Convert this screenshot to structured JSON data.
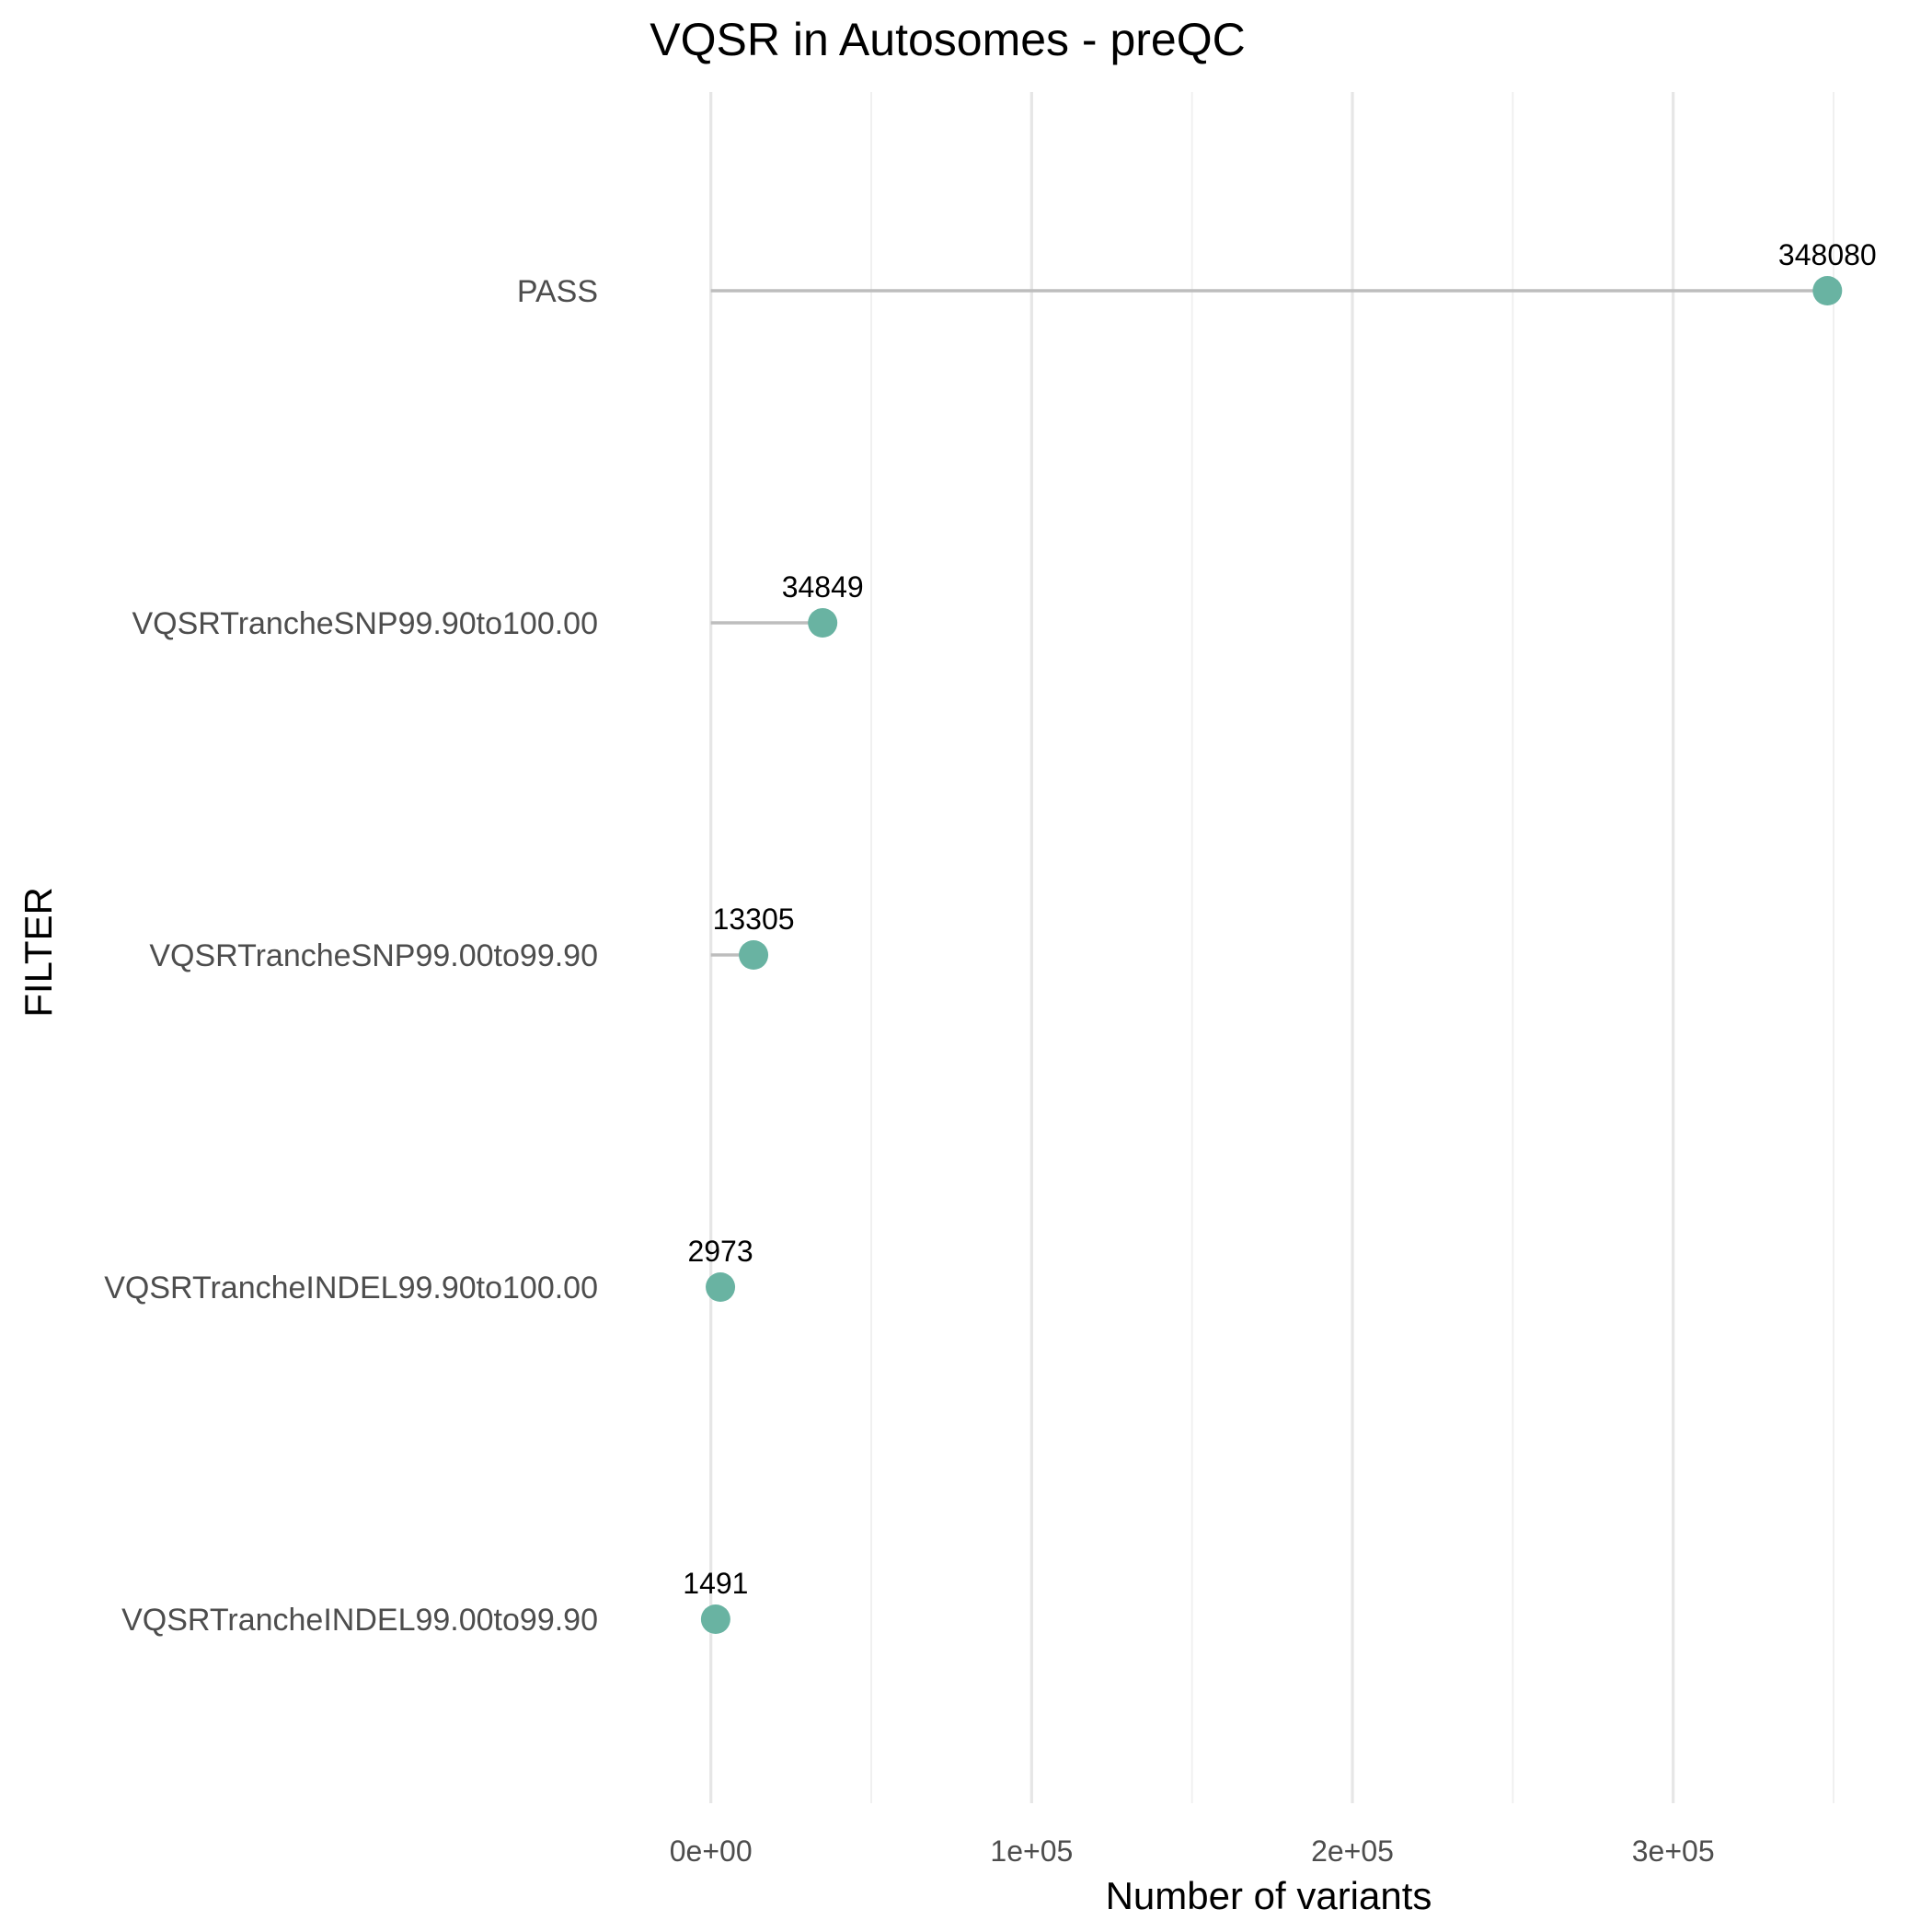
{
  "chart_data": {
    "type": "scatter",
    "title": "VQSR in Autosomes - preQC",
    "xlabel": "Number of variants",
    "ylabel": "FILTER",
    "categories": [
      "PASS",
      "VQSRTrancheSNP99.90to100.00",
      "VQSRTrancheSNP99.00to99.90",
      "VQSRTrancheINDEL99.90to100.00",
      "VQSRTrancheINDEL99.00to99.90"
    ],
    "values": [
      348080,
      34849,
      13305,
      2973,
      1491
    ],
    "data_labels": [
      "348080",
      "34849",
      "13305",
      "2973",
      "1491"
    ],
    "x_ticks": [
      0,
      100000,
      200000,
      300000
    ],
    "x_tick_labels": [
      "0e+00",
      "1e+05",
      "2e+05",
      "3e+05"
    ],
    "x_minor_ticks": [
      50000,
      150000,
      250000,
      350000
    ],
    "xlim": [
      -17404,
      365484
    ],
    "grid": "vertical",
    "legend": "none",
    "colors": {
      "point": "#69b3a2",
      "stem": "#bdbdbd",
      "grid_major": "#e6e6e6",
      "grid_minor": "#efefef"
    }
  }
}
